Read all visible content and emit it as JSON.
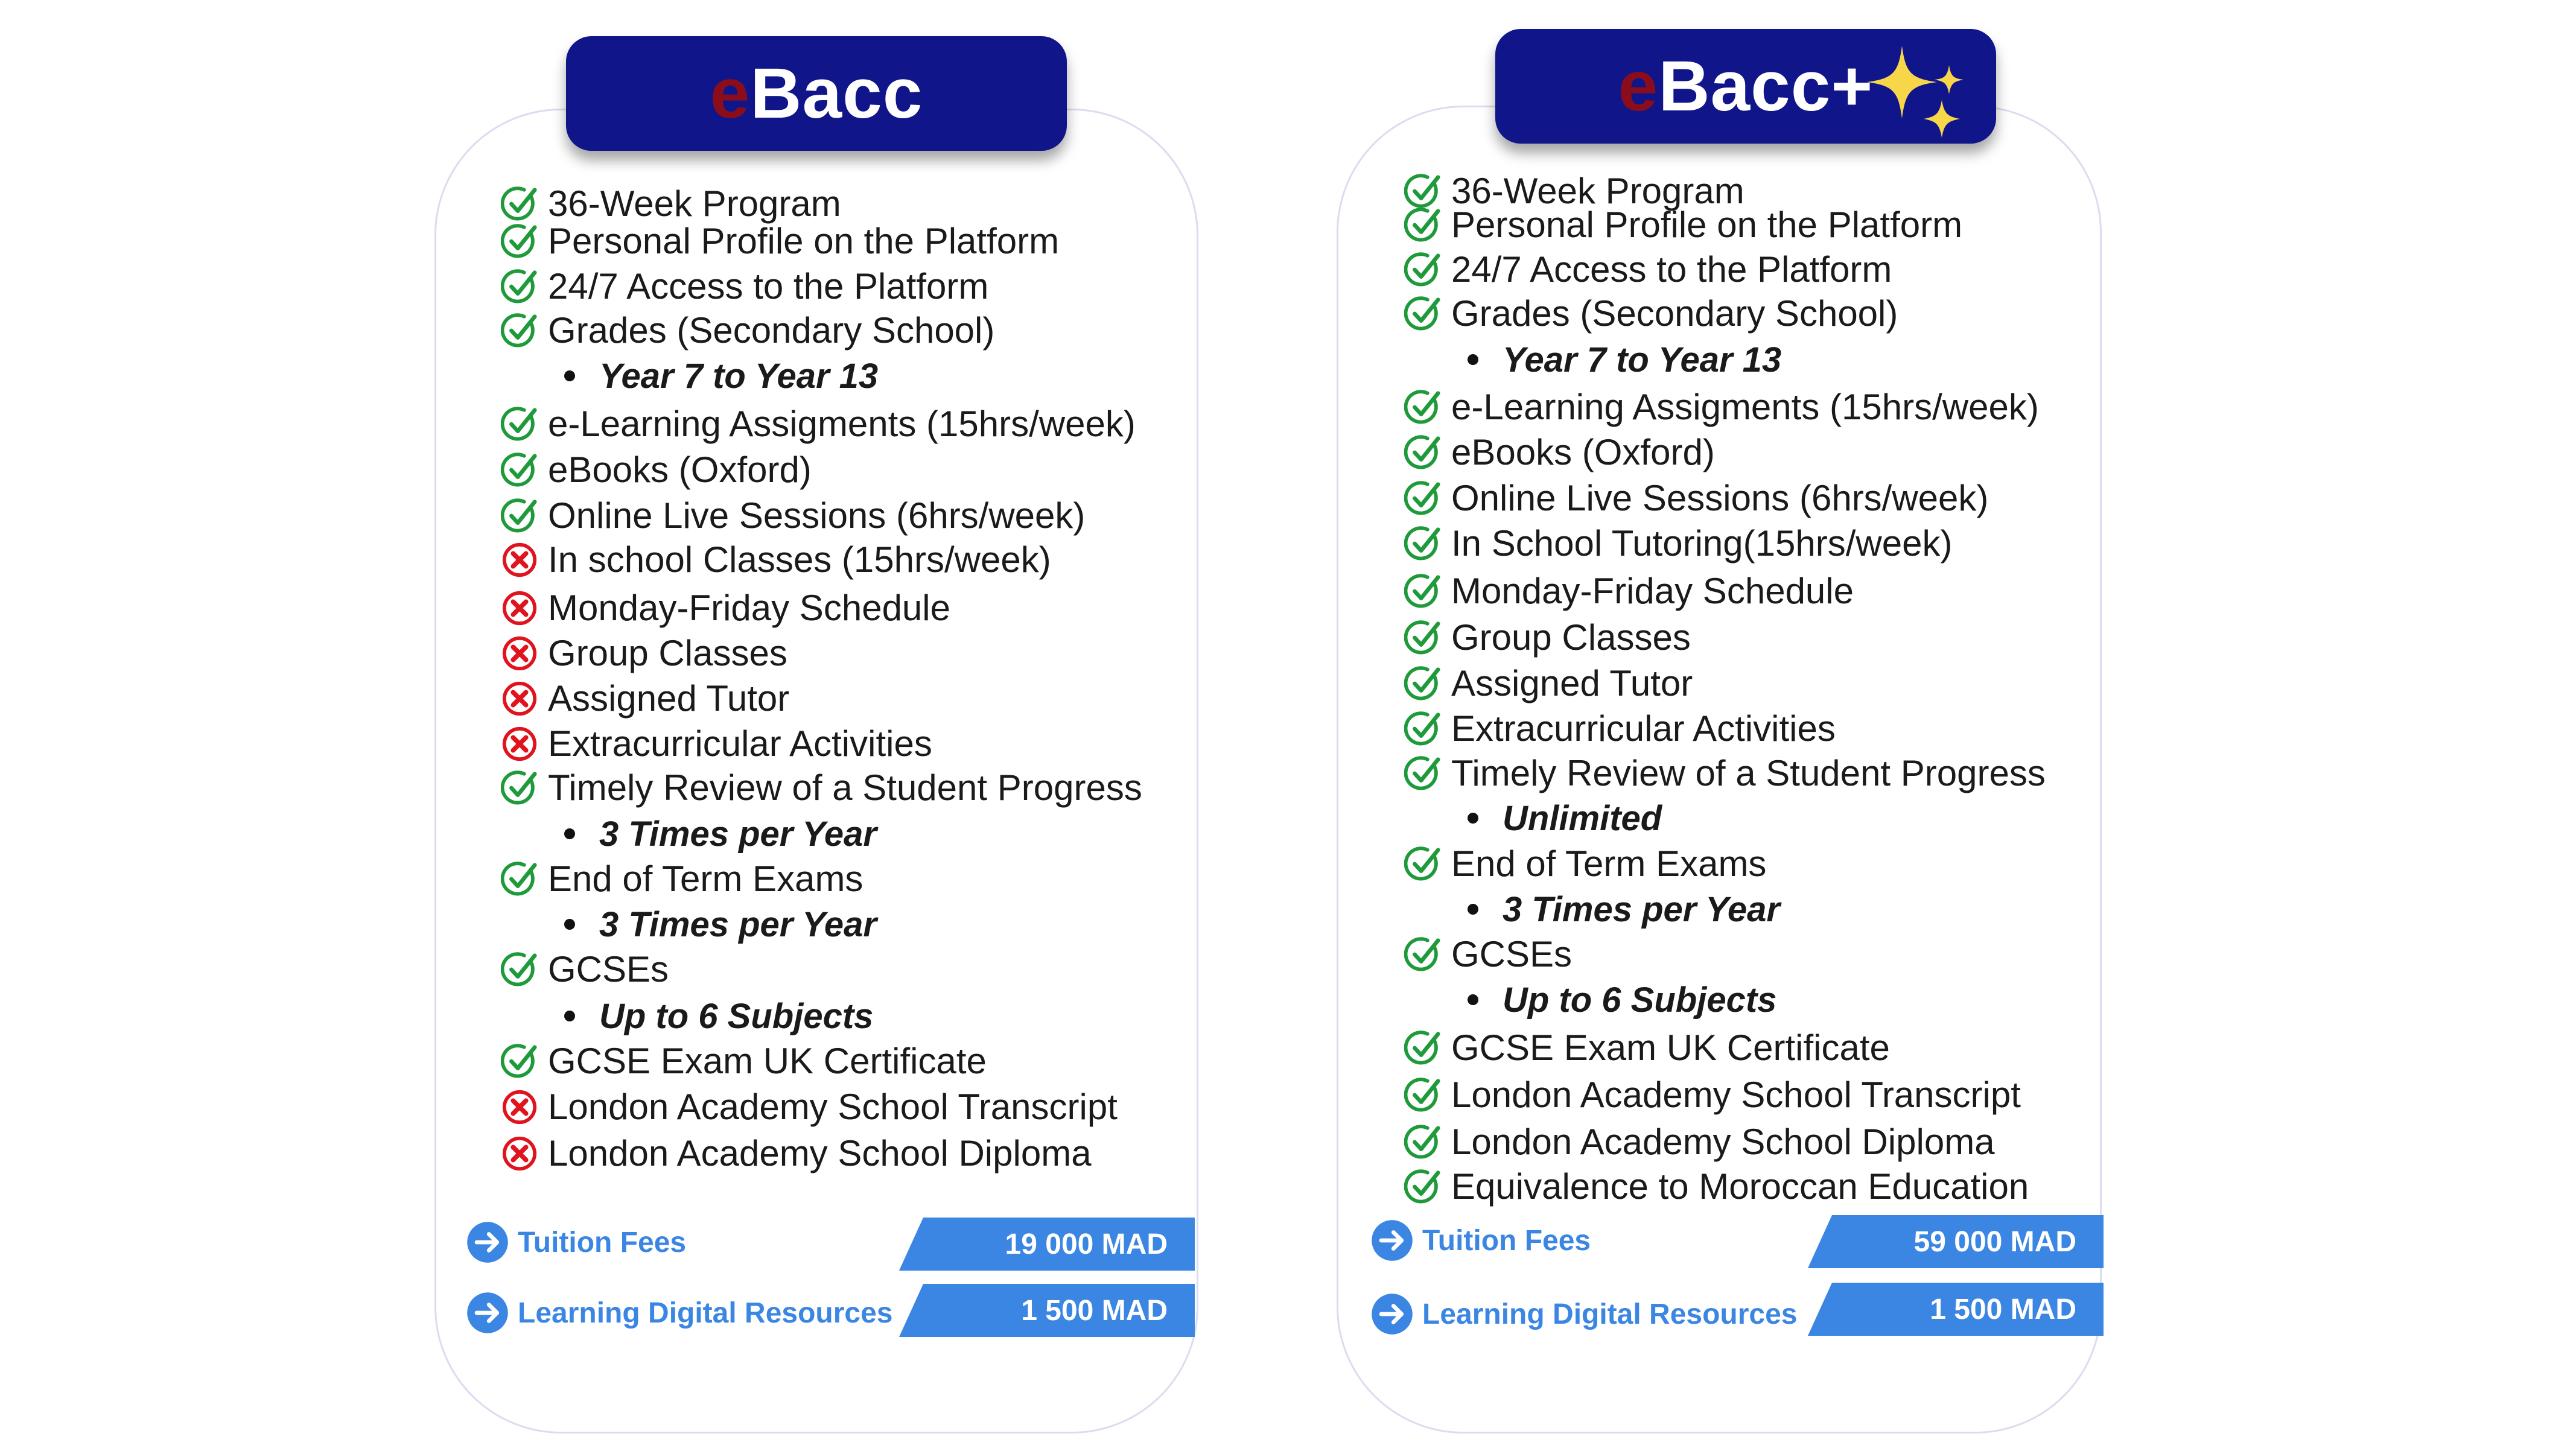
{
  "plans": [
    {
      "title_e": "e",
      "title_rest": "Bacc",
      "features": [
        {
          "label": "36-Week Program",
          "included": true
        },
        {
          "label": "Personal Profile on the Platform",
          "included": true
        },
        {
          "label": "24/7 Access to the Platform",
          "included": true
        },
        {
          "label": "Grades (Secondary School)",
          "included": true
        },
        {
          "detail": "Year 7 to Year 13"
        },
        {
          "label": "e-Learning Assigments (15hrs/week)",
          "included": true
        },
        {
          "label": "eBooks (Oxford)",
          "included": true
        },
        {
          "label": "Online Live Sessions (6hrs/week)",
          "included": true
        },
        {
          "label": "In school Classes (15hrs/week)",
          "included": false
        },
        {
          "label": "Monday-Friday Schedule",
          "included": false
        },
        {
          "label": "Group Classes",
          "included": false
        },
        {
          "label": "Assigned Tutor",
          "included": false
        },
        {
          "label": "Extracurricular Activities",
          "included": false
        },
        {
          "label": "Timely Review of a Student Progress",
          "included": true
        },
        {
          "detail": "3 Times per Year"
        },
        {
          "label": "End of Term Exams",
          "included": true
        },
        {
          "detail": "3 Times per Year"
        },
        {
          "label": "GCSEs",
          "included": true
        },
        {
          "detail": "Up to 6 Subjects"
        },
        {
          "label": "GCSE Exam UK Certificate",
          "included": true
        },
        {
          "label": "London Academy School Transcript",
          "included": false
        },
        {
          "label": "London Academy School Diploma",
          "included": false
        }
      ],
      "fees": [
        {
          "label": "Tuition Fees",
          "price": "19 000 MAD"
        },
        {
          "label": "Learning Digital Resources",
          "price": "1 500 MAD"
        }
      ]
    },
    {
      "title_e": "e",
      "title_rest": "Bacc+",
      "features": [
        {
          "label": "36-Week Program",
          "included": true
        },
        {
          "label": "Personal Profile on the Platform",
          "included": true
        },
        {
          "label": "24/7 Access to the Platform",
          "included": true
        },
        {
          "label": "Grades (Secondary School)",
          "included": true
        },
        {
          "detail": "Year 7 to Year 13"
        },
        {
          "label": "e-Learning Assigments (15hrs/week)",
          "included": true
        },
        {
          "label": "eBooks (Oxford)",
          "included": true
        },
        {
          "label": "Online Live Sessions (6hrs/week)",
          "included": true
        },
        {
          "label": "In School Tutoring(15hrs/week)",
          "included": true
        },
        {
          "label": "Monday-Friday Schedule",
          "included": true
        },
        {
          "label": "Group Classes",
          "included": true
        },
        {
          "label": "Assigned Tutor",
          "included": true
        },
        {
          "label": "Extracurricular Activities",
          "included": true
        },
        {
          "label": "Timely Review of a Student Progress",
          "included": true
        },
        {
          "detail": "Unlimited"
        },
        {
          "label": "End of Term Exams",
          "included": true
        },
        {
          "detail": "3 Times per Year"
        },
        {
          "label": "GCSEs",
          "included": true
        },
        {
          "detail": "Up to 6 Subjects"
        },
        {
          "label": "GCSE Exam UK Certificate",
          "included": true
        },
        {
          "label": "London Academy School Transcript",
          "included": true
        },
        {
          "label": "London Academy School Diploma",
          "included": true
        },
        {
          "label": "Equivalence to Moroccan Education",
          "included": true
        }
      ],
      "fees": [
        {
          "label": "Tuition Fees",
          "price": "59 000 MAD"
        },
        {
          "label": "Learning Digital Resources",
          "price": "1 500 MAD"
        }
      ]
    }
  ],
  "icons": {
    "included": "check-circle-icon",
    "excluded": "x-circle-icon",
    "fee_arrow": "arrow-right-circle-icon",
    "badge": "sparkles-icon"
  },
  "colors": {
    "banner": "#10168a",
    "title_e": "#8b0d1c",
    "check": "#1f9a3a",
    "cross": "#e0141e",
    "fee_blue": "#3b86e2",
    "sparkle": "#f7d64a"
  }
}
